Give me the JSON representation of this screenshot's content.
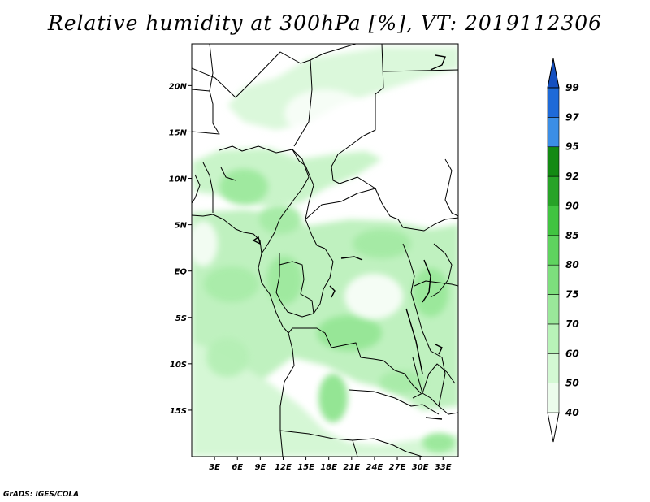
{
  "title": "Relative humidity at 300hPa [%], VT: 2019112306",
  "credit": "GrADS: IGES/COLA",
  "map": {
    "lat_labels": [
      "20N",
      "15N",
      "10N",
      "5N",
      "EQ",
      "5S",
      "10S",
      "15S"
    ],
    "lat_values": [
      20,
      15,
      10,
      5,
      0,
      -5,
      -10,
      -15
    ],
    "lon_labels": [
      "3E",
      "6E",
      "9E",
      "12E",
      "15E",
      "18E",
      "21E",
      "24E",
      "27E",
      "30E",
      "33E"
    ],
    "lon_values": [
      3,
      6,
      9,
      12,
      15,
      18,
      21,
      24,
      27,
      30,
      33
    ],
    "lon_range": [
      0,
      35
    ],
    "lat_range": [
      -20,
      24.5
    ]
  },
  "colorbar": {
    "levels": [
      "40",
      "50",
      "60",
      "70",
      "75",
      "80",
      "85",
      "90",
      "92",
      "95",
      "97",
      "99"
    ],
    "colors": [
      "#ecfcec",
      "#d3f8d3",
      "#b8f3b8",
      "#9ae89a",
      "#7ddf7d",
      "#5fd35f",
      "#41c441",
      "#27a327",
      "#138a13",
      "#3b8ee6",
      "#1e6ad8",
      "#1550c0"
    ]
  }
}
